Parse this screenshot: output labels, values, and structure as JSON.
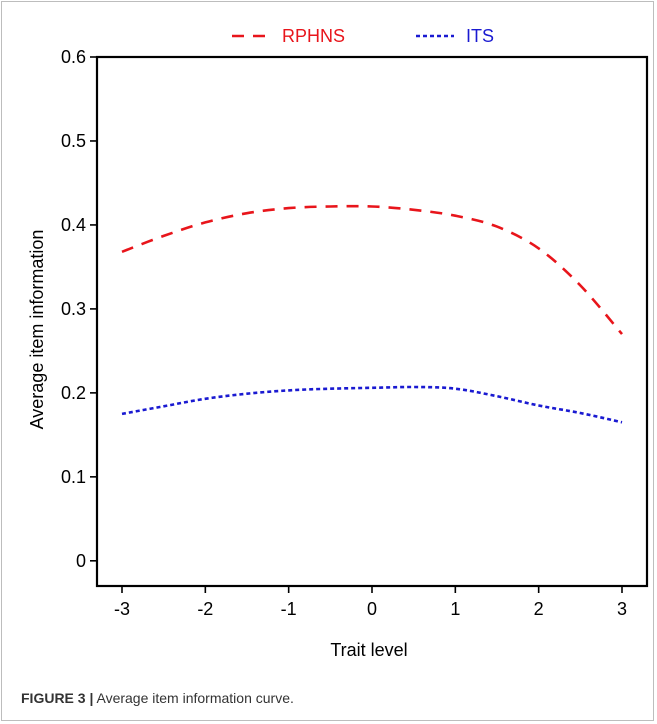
{
  "chart_data": {
    "type": "line",
    "title": "",
    "xlabel": "Trait level",
    "ylabel": "Average item information",
    "xlim": [
      -3.3,
      3.3
    ],
    "ylim": [
      -0.03,
      0.6
    ],
    "xticks": [
      -3,
      -2,
      -1,
      0,
      1,
      2,
      3
    ],
    "yticks": [
      0,
      0.1,
      0.2,
      0.3,
      0.4,
      0.5,
      0.6
    ],
    "ytick_labels": [
      "0",
      "0.1",
      "0.2",
      "0.3",
      "0.4",
      "0.5",
      "0.6"
    ],
    "legend_position": "top",
    "series": [
      {
        "name": "RPHNS",
        "color": "#e8151b",
        "dash": "dashed",
        "x": [
          -3,
          -2.5,
          -2,
          -1.5,
          -1,
          -0.5,
          0,
          0.5,
          1,
          1.5,
          2,
          2.5,
          3
        ],
        "y": [
          0.368,
          0.387,
          0.403,
          0.414,
          0.42,
          0.422,
          0.422,
          0.418,
          0.411,
          0.398,
          0.372,
          0.328,
          0.27
        ]
      },
      {
        "name": "ITS",
        "color": "#1a1ad1",
        "dash": "dotted",
        "x": [
          -3,
          -2.5,
          -2,
          -1.5,
          -1,
          -0.5,
          0,
          0.5,
          1,
          1.5,
          2,
          2.5,
          3
        ],
        "y": [
          0.175,
          0.184,
          0.193,
          0.199,
          0.203,
          0.205,
          0.206,
          0.207,
          0.205,
          0.196,
          0.185,
          0.176,
          0.165
        ]
      }
    ]
  },
  "caption": {
    "number": "FIGURE 3 |",
    "text": " Average item information curve."
  }
}
